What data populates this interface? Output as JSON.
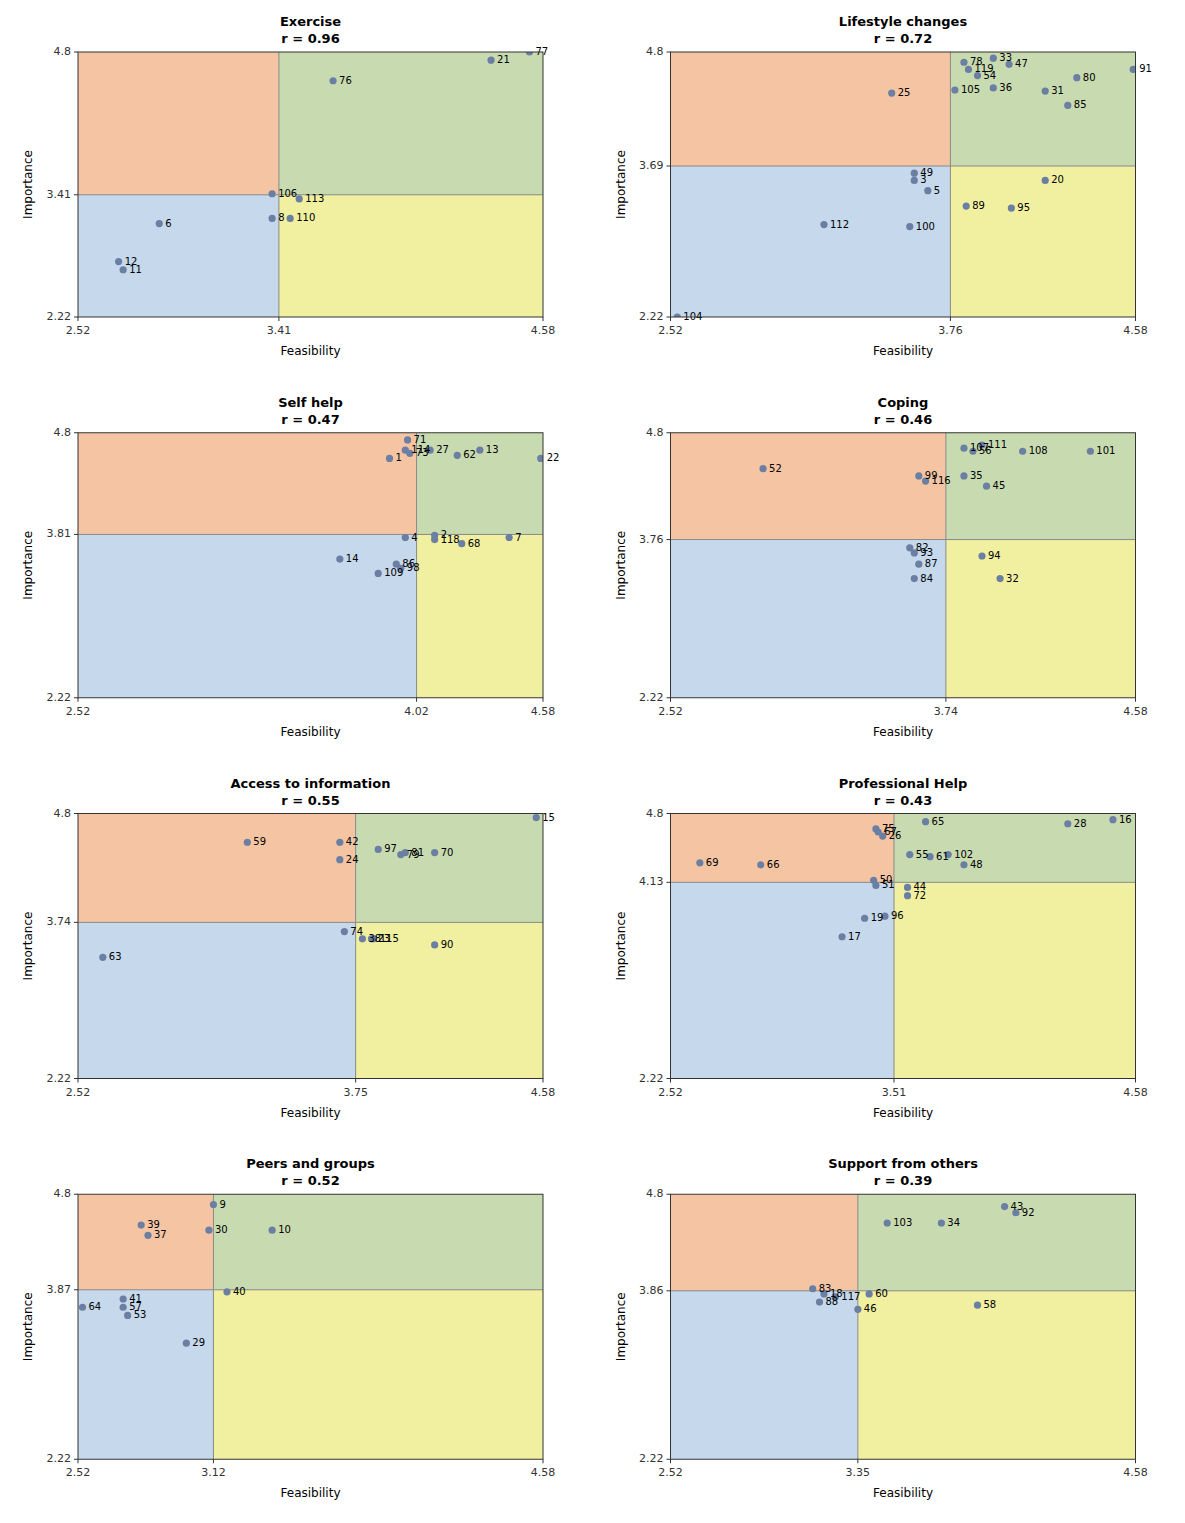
{
  "chart_data": [
    {
      "type": "scatter",
      "title": "Exercise",
      "subtitle": "r = 0.96",
      "xlabel": "Feasibility",
      "ylabel": "Importance",
      "xlim": [
        2.52,
        4.58
      ],
      "ylim": [
        2.22,
        4.8
      ],
      "xticks": [
        2.52,
        3.41,
        4.58
      ],
      "yticks": [
        2.22,
        3.41,
        4.8
      ],
      "xline": 3.41,
      "yline": 3.41,
      "color": "#6b7fa3",
      "quadrant_colors": {
        "upper_left": "#f5c5a3",
        "upper_right": "#c8dbb0",
        "lower_left": "#c5d8ec",
        "lower_right": "#f0f0a0"
      },
      "labels": [
        "77",
        "21",
        "76",
        "106",
        "113",
        "8",
        "110",
        "6",
        "12",
        "11"
      ],
      "x": [
        4.52,
        4.35,
        3.65,
        3.38,
        3.5,
        3.38,
        3.46,
        2.88,
        2.7,
        2.72
      ],
      "values": [
        4.8,
        4.72,
        4.52,
        3.42,
        3.37,
        3.18,
        3.18,
        3.13,
        2.76,
        2.68
      ]
    },
    {
      "type": "scatter",
      "title": "Lifestyle changes",
      "subtitle": "r = 0.72",
      "xlabel": "Feasibility",
      "ylabel": "Importance",
      "xlim": [
        2.52,
        4.58
      ],
      "ylim": [
        2.22,
        4.8
      ],
      "xticks": [
        2.52,
        3.76,
        4.58
      ],
      "yticks": [
        2.22,
        3.69,
        4.8
      ],
      "xline": 3.76,
      "yline": 3.69,
      "color": "#6b7fa3",
      "quadrant_colors": {
        "upper_left": "#f5c5a3",
        "upper_right": "#c8dbb0",
        "lower_left": "#c5d8ec",
        "lower_right": "#f0f0a0"
      },
      "labels": [
        "33",
        "78",
        "47",
        "119",
        "54",
        "36",
        "31",
        "80",
        "91",
        "105",
        "85",
        "25",
        "49",
        "3",
        "5",
        "20",
        "89",
        "95",
        "112",
        "100",
        "104"
      ],
      "x": [
        3.95,
        3.82,
        4.02,
        3.84,
        3.88,
        3.95,
        4.18,
        4.32,
        4.57,
        3.78,
        4.28,
        3.5,
        3.6,
        3.6,
        3.66,
        4.18,
        3.83,
        4.03,
        3.2,
        3.58,
        2.55
      ],
      "values": [
        4.74,
        4.7,
        4.68,
        4.63,
        4.57,
        4.45,
        4.42,
        4.55,
        4.63,
        4.43,
        4.28,
        4.4,
        3.62,
        3.55,
        3.45,
        3.55,
        3.3,
        3.28,
        3.12,
        3.1,
        2.22
      ]
    },
    {
      "type": "scatter",
      "title": "Self help",
      "subtitle": "r = 0.47",
      "xlabel": "Feasibility",
      "ylabel": "Importance",
      "xlim": [
        2.52,
        4.58
      ],
      "ylim": [
        2.22,
        4.8
      ],
      "xticks": [
        2.52,
        4.02,
        4.58
      ],
      "yticks": [
        2.22,
        3.81,
        4.8
      ],
      "xline": 4.02,
      "yline": 3.81,
      "color": "#6b7fa3",
      "quadrant_colors": {
        "upper_left": "#f5c5a3",
        "upper_right": "#c8dbb0",
        "lower_left": "#c5d8ec",
        "lower_right": "#f0f0a0"
      },
      "labels": [
        "71",
        "114",
        "73",
        "1",
        "27",
        "13",
        "62",
        "22",
        "4",
        "2",
        "118",
        "68",
        "7",
        "14",
        "86",
        "98",
        "109"
      ],
      "x": [
        3.98,
        3.97,
        3.99,
        3.9,
        4.08,
        4.3,
        4.2,
        4.57,
        3.97,
        4.1,
        4.1,
        4.22,
        4.43,
        3.68,
        3.93,
        3.95,
        3.85
      ],
      "values": [
        4.73,
        4.63,
        4.6,
        4.55,
        4.63,
        4.63,
        4.58,
        4.55,
        3.78,
        3.8,
        3.76,
        3.72,
        3.78,
        3.57,
        3.52,
        3.48,
        3.43
      ]
    },
    {
      "type": "scatter",
      "title": "Coping",
      "subtitle": "r = 0.46",
      "xlabel": "Feasibility",
      "ylabel": "Importance",
      "xlim": [
        2.52,
        4.58
      ],
      "ylim": [
        2.22,
        4.8
      ],
      "xticks": [
        2.52,
        3.74,
        4.58
      ],
      "yticks": [
        2.22,
        3.76,
        4.8
      ],
      "xline": 3.74,
      "yline": 3.76,
      "color": "#6b7fa3",
      "quadrant_colors": {
        "upper_left": "#f5c5a3",
        "upper_right": "#c8dbb0",
        "lower_left": "#c5d8ec",
        "lower_right": "#f0f0a0"
      },
      "labels": [
        "111",
        "107",
        "56",
        "108",
        "101",
        "52",
        "99",
        "116",
        "35",
        "45",
        "82",
        "93",
        "87",
        "84",
        "94",
        "32"
      ],
      "x": [
        3.9,
        3.82,
        3.86,
        4.08,
        4.38,
        2.93,
        3.62,
        3.65,
        3.82,
        3.92,
        3.58,
        3.6,
        3.62,
        3.6,
        3.9,
        3.98
      ],
      "values": [
        4.68,
        4.65,
        4.62,
        4.62,
        4.62,
        4.45,
        4.38,
        4.33,
        4.38,
        4.28,
        3.68,
        3.63,
        3.52,
        3.38,
        3.6,
        3.38
      ]
    },
    {
      "type": "scatter",
      "title": "Access to information",
      "subtitle": "r = 0.55",
      "xlabel": "Feasibility",
      "ylabel": "Importance",
      "xlim": [
        2.52,
        4.58
      ],
      "ylim": [
        2.22,
        4.8
      ],
      "xticks": [
        2.52,
        3.75,
        4.58
      ],
      "yticks": [
        2.22,
        3.74,
        4.8
      ],
      "xline": 3.75,
      "yline": 3.74,
      "color": "#6b7fa3",
      "quadrant_colors": {
        "upper_left": "#f5c5a3",
        "upper_right": "#c8dbb0",
        "lower_left": "#c5d8ec",
        "lower_right": "#f0f0a0"
      },
      "labels": [
        "15",
        "59",
        "42",
        "97",
        "81",
        "79",
        "70",
        "24",
        "74",
        "38",
        "115",
        "23",
        "90",
        "63"
      ],
      "x": [
        4.55,
        3.27,
        3.68,
        3.85,
        3.97,
        3.95,
        4.1,
        3.68,
        3.7,
        3.78,
        3.83,
        3.82,
        4.1,
        2.63
      ],
      "values": [
        4.76,
        4.52,
        4.52,
        4.45,
        4.42,
        4.4,
        4.42,
        4.35,
        3.65,
        3.58,
        3.58,
        3.58,
        3.52,
        3.4
      ]
    },
    {
      "type": "scatter",
      "title": "Professional Help",
      "subtitle": "r = 0.43",
      "xlabel": "Feasibility",
      "ylabel": "Importance",
      "xlim": [
        2.52,
        4.58
      ],
      "ylim": [
        2.22,
        4.8
      ],
      "xticks": [
        2.52,
        3.51,
        4.58
      ],
      "yticks": [
        2.22,
        4.13,
        4.8
      ],
      "xline": 3.51,
      "yline": 4.13,
      "color": "#6b7fa3",
      "quadrant_colors": {
        "upper_left": "#f5c5a3",
        "upper_right": "#c8dbb0",
        "lower_left": "#c5d8ec",
        "lower_right": "#f0f0a0"
      },
      "labels": [
        "65",
        "28",
        "16",
        "75",
        "67",
        "26",
        "55",
        "61",
        "102",
        "48",
        "69",
        "66",
        "50",
        "51",
        "44",
        "72",
        "96",
        "19",
        "17"
      ],
      "x": [
        3.65,
        4.28,
        4.48,
        3.43,
        3.44,
        3.46,
        3.58,
        3.67,
        3.75,
        3.82,
        2.65,
        2.92,
        3.42,
        3.43,
        3.57,
        3.57,
        3.47,
        3.38,
        3.28
      ],
      "values": [
        4.72,
        4.7,
        4.74,
        4.65,
        4.62,
        4.58,
        4.4,
        4.38,
        4.4,
        4.3,
        4.32,
        4.3,
        4.15,
        4.1,
        4.08,
        4.0,
        3.8,
        3.78,
        3.6
      ]
    },
    {
      "type": "scatter",
      "title": "Peers and groups",
      "subtitle": "r = 0.52",
      "xlabel": "Feasibility",
      "ylabel": "Importance",
      "xlim": [
        2.52,
        4.58
      ],
      "ylim": [
        2.22,
        4.8
      ],
      "xticks": [
        2.52,
        3.12,
        4.58
      ],
      "yticks": [
        2.22,
        3.87,
        4.8
      ],
      "xline": 3.12,
      "yline": 3.87,
      "color": "#6b7fa3",
      "quadrant_colors": {
        "upper_left": "#f5c5a3",
        "upper_right": "#c8dbb0",
        "lower_left": "#c5d8ec",
        "lower_right": "#f0f0a0"
      },
      "labels": [
        "9",
        "39",
        "30",
        "10",
        "37",
        "40",
        "41",
        "57",
        "53",
        "64",
        "29"
      ],
      "x": [
        3.12,
        2.8,
        3.1,
        3.38,
        2.83,
        3.18,
        2.72,
        2.72,
        2.74,
        2.54,
        3.0
      ],
      "values": [
        4.7,
        4.5,
        4.45,
        4.45,
        4.4,
        3.85,
        3.78,
        3.7,
        3.62,
        3.7,
        3.35
      ]
    },
    {
      "type": "scatter",
      "title": "Support from others",
      "subtitle": "r = 0.39",
      "xlabel": "Feasibility",
      "ylabel": "Importance",
      "xlim": [
        2.52,
        4.58
      ],
      "ylim": [
        2.22,
        4.8
      ],
      "xticks": [
        2.52,
        3.35,
        4.58
      ],
      "yticks": [
        2.22,
        3.86,
        4.8
      ],
      "xline": 3.35,
      "yline": 3.86,
      "color": "#6b7fa3",
      "quadrant_colors": {
        "upper_left": "#f5c5a3",
        "upper_right": "#c8dbb0",
        "lower_left": "#c5d8ec",
        "lower_right": "#f0f0a0"
      },
      "labels": [
        "43",
        "92",
        "103",
        "34",
        "83",
        "18",
        "117",
        "60",
        "88",
        "46",
        "58"
      ],
      "x": [
        4.0,
        4.05,
        3.48,
        3.72,
        3.15,
        3.2,
        3.25,
        3.4,
        3.18,
        3.35,
        3.88
      ],
      "values": [
        4.68,
        4.62,
        4.52,
        4.52,
        3.88,
        3.83,
        3.8,
        3.83,
        3.75,
        3.68,
        3.72
      ]
    }
  ]
}
